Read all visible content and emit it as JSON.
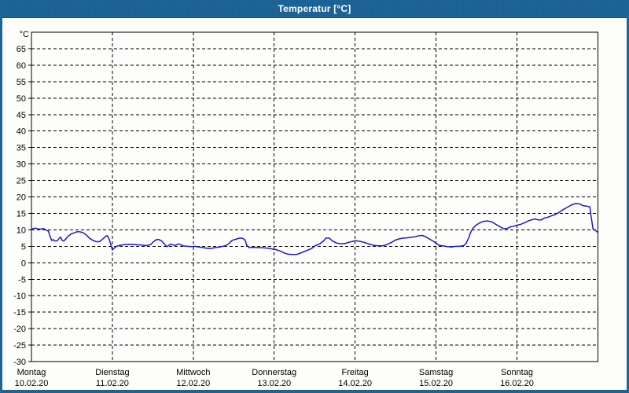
{
  "window": {
    "title": "Temperatur [°C]"
  },
  "colors": {
    "titlebar": "#1d6496",
    "window_border": "#1d6496",
    "plot_background": "#ffffff",
    "grid": "#000000",
    "axis_text": "#000000",
    "series": "#1a1ac8"
  },
  "chart_data": {
    "type": "line",
    "title": "Temperatur [°C]",
    "y_unit": "°C",
    "grid": "dashed",
    "legend": "none",
    "y_axis": {
      "min": -30,
      "max": 70,
      "tick_step": 5,
      "first_label": 65,
      "last_label": -30
    },
    "x_axis": {
      "gridlines": "day_boundaries",
      "days": [
        {
          "name": "Montag",
          "date": "10.02.20"
        },
        {
          "name": "Dienstag",
          "date": "11.02.20"
        },
        {
          "name": "Mittwoch",
          "date": "12.02.20"
        },
        {
          "name": "Donnerstag",
          "date": "13.02.20"
        },
        {
          "name": "Freitag",
          "date": "14.02.20"
        },
        {
          "name": "Samstag",
          "date": "15.02.20"
        },
        {
          "name": "Sonntag",
          "date": "16.02.20"
        }
      ]
    },
    "series": [
      {
        "name": "Temperatur",
        "color": "#1a1ac8",
        "x_unit": "days_from_monday_00h",
        "points": [
          [
            0.0,
            10.3
          ],
          [
            0.05,
            10.5
          ],
          [
            0.1,
            10.2
          ],
          [
            0.15,
            10.4
          ],
          [
            0.18,
            9.9
          ],
          [
            0.21,
            9.6
          ],
          [
            0.23,
            8.0
          ],
          [
            0.25,
            6.8
          ],
          [
            0.27,
            7.0
          ],
          [
            0.29,
            6.6
          ],
          [
            0.32,
            6.7
          ],
          [
            0.34,
            7.3
          ],
          [
            0.36,
            7.8
          ],
          [
            0.38,
            6.8
          ],
          [
            0.4,
            6.6
          ],
          [
            0.43,
            7.4
          ],
          [
            0.46,
            8.2
          ],
          [
            0.49,
            8.7
          ],
          [
            0.53,
            9.1
          ],
          [
            0.56,
            9.4
          ],
          [
            0.6,
            9.4
          ],
          [
            0.64,
            9.1
          ],
          [
            0.68,
            8.4
          ],
          [
            0.72,
            7.4
          ],
          [
            0.76,
            6.8
          ],
          [
            0.8,
            6.4
          ],
          [
            0.84,
            6.4
          ],
          [
            0.86,
            6.8
          ],
          [
            0.89,
            7.4
          ],
          [
            0.92,
            8.1
          ],
          [
            0.94,
            8.2
          ],
          [
            0.96,
            7.2
          ],
          [
            0.98,
            5.6
          ],
          [
            1.0,
            3.9
          ],
          [
            1.02,
            4.4
          ],
          [
            1.05,
            5.0
          ],
          [
            1.09,
            5.3
          ],
          [
            1.15,
            5.5
          ],
          [
            1.21,
            5.6
          ],
          [
            1.28,
            5.5
          ],
          [
            1.36,
            5.4
          ],
          [
            1.42,
            5.2
          ],
          [
            1.47,
            5.5
          ],
          [
            1.51,
            6.4
          ],
          [
            1.54,
            7.0
          ],
          [
            1.57,
            7.1
          ],
          [
            1.61,
            6.6
          ],
          [
            1.64,
            5.8
          ],
          [
            1.67,
            4.9
          ],
          [
            1.7,
            5.3
          ],
          [
            1.72,
            5.7
          ],
          [
            1.75,
            5.4
          ],
          [
            1.78,
            5.3
          ],
          [
            1.81,
            5.7
          ],
          [
            1.85,
            5.5
          ],
          [
            1.88,
            5.1
          ],
          [
            1.93,
            5.0
          ],
          [
            1.98,
            4.9
          ],
          [
            2.02,
            5.0
          ],
          [
            2.07,
            4.8
          ],
          [
            2.12,
            4.6
          ],
          [
            2.17,
            4.4
          ],
          [
            2.21,
            4.3
          ],
          [
            2.25,
            4.5
          ],
          [
            2.3,
            4.7
          ],
          [
            2.35,
            4.9
          ],
          [
            2.4,
            5.2
          ],
          [
            2.44,
            5.8
          ],
          [
            2.48,
            6.8
          ],
          [
            2.52,
            7.1
          ],
          [
            2.56,
            7.4
          ],
          [
            2.59,
            7.5
          ],
          [
            2.62,
            7.3
          ],
          [
            2.64,
            6.9
          ],
          [
            2.66,
            5.3
          ],
          [
            2.69,
            4.6
          ],
          [
            2.73,
            4.7
          ],
          [
            2.78,
            4.6
          ],
          [
            2.83,
            4.6
          ],
          [
            2.88,
            4.5
          ],
          [
            2.93,
            4.4
          ],
          [
            2.97,
            4.2
          ],
          [
            3.02,
            4.0
          ],
          [
            3.07,
            3.6
          ],
          [
            3.12,
            3.0
          ],
          [
            3.17,
            2.6
          ],
          [
            3.22,
            2.5
          ],
          [
            3.27,
            2.5
          ],
          [
            3.31,
            2.8
          ],
          [
            3.36,
            3.3
          ],
          [
            3.41,
            3.8
          ],
          [
            3.46,
            4.3
          ],
          [
            3.51,
            5.2
          ],
          [
            3.56,
            5.7
          ],
          [
            3.61,
            6.6
          ],
          [
            3.64,
            7.5
          ],
          [
            3.68,
            7.5
          ],
          [
            3.72,
            6.6
          ],
          [
            3.77,
            6.0
          ],
          [
            3.82,
            5.8
          ],
          [
            3.87,
            5.8
          ],
          [
            3.92,
            6.2
          ],
          [
            3.97,
            6.5
          ],
          [
            4.01,
            6.7
          ],
          [
            4.06,
            6.5
          ],
          [
            4.11,
            6.2
          ],
          [
            4.16,
            5.8
          ],
          [
            4.21,
            5.4
          ],
          [
            4.26,
            5.2
          ],
          [
            4.31,
            5.1
          ],
          [
            4.35,
            5.2
          ],
          [
            4.4,
            5.6
          ],
          [
            4.45,
            6.2
          ],
          [
            4.5,
            6.9
          ],
          [
            4.55,
            7.3
          ],
          [
            4.6,
            7.5
          ],
          [
            4.65,
            7.6
          ],
          [
            4.69,
            7.7
          ],
          [
            4.74,
            7.9
          ],
          [
            4.79,
            8.2
          ],
          [
            4.83,
            8.3
          ],
          [
            4.87,
            7.9
          ],
          [
            4.92,
            7.2
          ],
          [
            4.97,
            6.5
          ],
          [
            5.01,
            5.8
          ],
          [
            5.04,
            5.3
          ],
          [
            5.09,
            5.1
          ],
          [
            5.14,
            4.9
          ],
          [
            5.19,
            4.8
          ],
          [
            5.24,
            5.0
          ],
          [
            5.29,
            5.0
          ],
          [
            5.34,
            5.2
          ],
          [
            5.37,
            5.8
          ],
          [
            5.4,
            7.3
          ],
          [
            5.43,
            9.3
          ],
          [
            5.46,
            10.6
          ],
          [
            5.5,
            11.5
          ],
          [
            5.54,
            12.1
          ],
          [
            5.59,
            12.6
          ],
          [
            5.64,
            12.7
          ],
          [
            5.69,
            12.4
          ],
          [
            5.73,
            11.8
          ],
          [
            5.78,
            11.1
          ],
          [
            5.83,
            10.4
          ],
          [
            5.88,
            10.4
          ],
          [
            5.92,
            10.9
          ],
          [
            5.96,
            11.1
          ],
          [
            6.0,
            11.4
          ],
          [
            6.05,
            11.7
          ],
          [
            6.09,
            12.1
          ],
          [
            6.14,
            12.7
          ],
          [
            6.19,
            13.1
          ],
          [
            6.23,
            13.3
          ],
          [
            6.26,
            13.0
          ],
          [
            6.3,
            13.0
          ],
          [
            6.34,
            13.6
          ],
          [
            6.38,
            13.8
          ],
          [
            6.42,
            14.2
          ],
          [
            6.47,
            14.6
          ],
          [
            6.52,
            15.3
          ],
          [
            6.57,
            16.1
          ],
          [
            6.62,
            16.8
          ],
          [
            6.67,
            17.5
          ],
          [
            6.71,
            17.9
          ],
          [
            6.74,
            18.0
          ],
          [
            6.78,
            17.8
          ],
          [
            6.82,
            17.3
          ],
          [
            6.86,
            17.2
          ],
          [
            6.9,
            17.0
          ],
          [
            6.92,
            13.5
          ],
          [
            6.94,
            10.3
          ],
          [
            6.97,
            9.8
          ],
          [
            7.0,
            9.2
          ]
        ]
      }
    ]
  }
}
